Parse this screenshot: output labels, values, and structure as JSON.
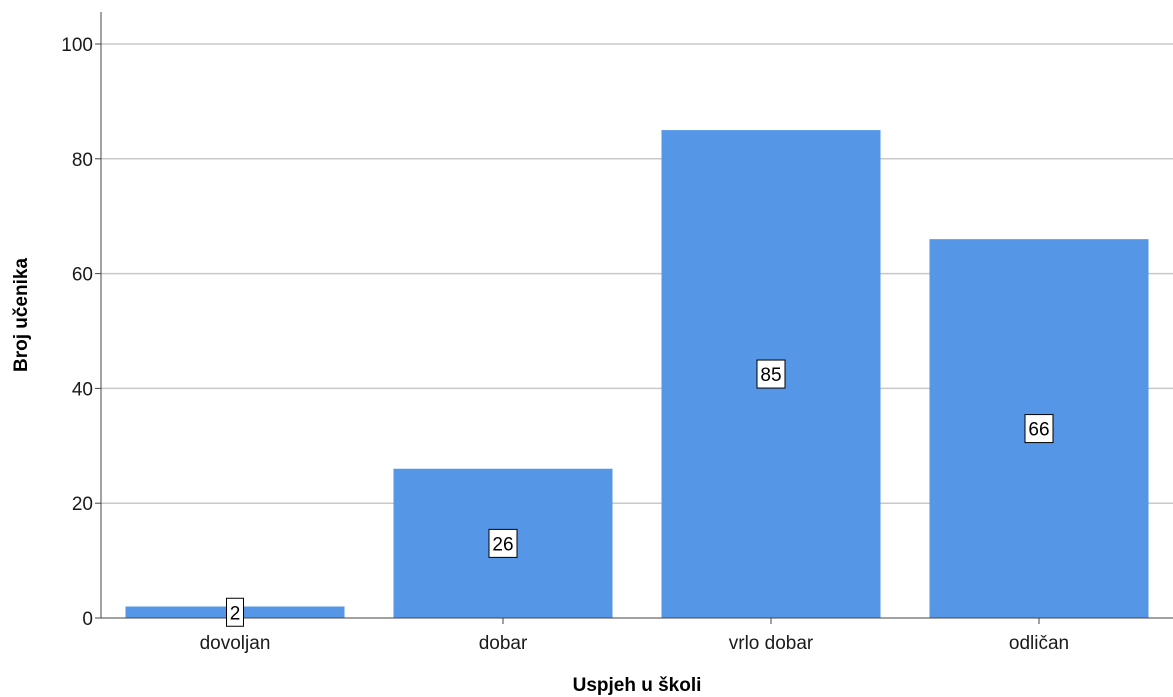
{
  "chart_data": {
    "type": "bar",
    "categories": [
      "dovoljan",
      "dobar",
      "vrlo dobar",
      "odličan"
    ],
    "values": [
      2,
      26,
      85,
      66
    ],
    "data_labels": [
      "2",
      "26",
      "85",
      "66"
    ],
    "xlabel": "Uspjeh u školi",
    "ylabel": "Broj učenika",
    "ylim": [
      0,
      105
    ],
    "yticks": [
      0,
      20,
      40,
      60,
      80,
      100
    ],
    "ytick_labels": [
      "0",
      "20",
      "40",
      "60",
      "80",
      "100"
    ],
    "grid": true,
    "bar_color": "#5596e6",
    "grid_color": "#c8c8c8"
  }
}
